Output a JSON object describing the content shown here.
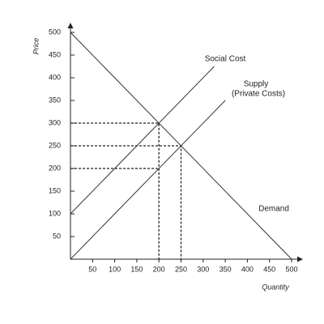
{
  "chart_data": {
    "type": "line",
    "x_label": "Quantity",
    "y_label": "Price",
    "xlim": [
      0,
      500
    ],
    "ylim": [
      0,
      500
    ],
    "xticks": [
      50,
      100,
      150,
      200,
      250,
      300,
      350,
      400,
      450,
      500
    ],
    "yticks": [
      50,
      100,
      150,
      200,
      250,
      300,
      350,
      400,
      450,
      500
    ],
    "series": [
      {
        "name": "Social Cost",
        "color": "#333333",
        "x": [
          0,
          325
        ],
        "values": [
          100,
          425
        ]
      },
      {
        "name": "Supply",
        "subname": "(Private Costs)",
        "color": "#333333",
        "x": [
          0,
          350
        ],
        "values": [
          0,
          350
        ]
      },
      {
        "name": "Demand",
        "color": "#333333",
        "x": [
          0,
          500
        ],
        "values": [
          500,
          0
        ]
      }
    ],
    "guides": [
      {
        "x": [
          0,
          200,
          200
        ],
        "values": [
          300,
          300,
          0
        ]
      },
      {
        "x": [
          0,
          250,
          250
        ],
        "values": [
          250,
          250,
          0
        ]
      },
      {
        "x": [
          0,
          200
        ],
        "values": [
          200,
          200
        ]
      }
    ]
  }
}
